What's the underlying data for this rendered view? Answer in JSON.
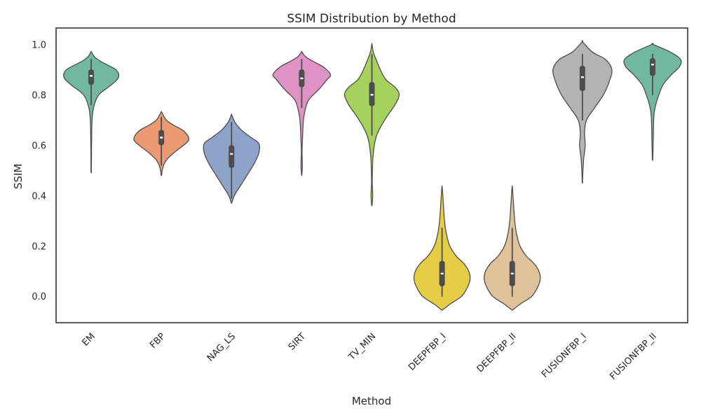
{
  "chart_data": {
    "type": "violin",
    "title": "SSIM Distribution by Method",
    "xlabel": "Method",
    "ylabel": "SSIM",
    "ylim": [
      -0.105,
      1.065
    ],
    "yticks": [
      "0.0",
      "0.2",
      "0.4",
      "0.6",
      "0.8",
      "1.0"
    ],
    "grid": false,
    "categories": [
      "EM",
      "FBP",
      "NAG_LS",
      "SIRT",
      "TV_MIN",
      "DEEPFBP_I",
      "DEEPFBP_II",
      "FUSIONFBP_I",
      "FUSIONFBP_II"
    ],
    "series": [
      {
        "category": "EM",
        "color": "#72b8a1",
        "min": 0.49,
        "max": 0.97,
        "q1": 0.84,
        "median": 0.875,
        "q3": 0.9,
        "whisker_low": 0.76,
        "whisker_high": 0.94,
        "profile": [
          [
            0.49,
            0.2
          ],
          [
            0.55,
            0.4
          ],
          [
            0.62,
            0.6
          ],
          [
            0.7,
            1.3
          ],
          [
            0.75,
            3.5
          ],
          [
            0.8,
            11
          ],
          [
            0.84,
            29
          ],
          [
            0.87,
            39
          ],
          [
            0.9,
            35
          ],
          [
            0.93,
            15
          ],
          [
            0.95,
            5
          ],
          [
            0.97,
            0.3
          ]
        ]
      },
      {
        "category": "FBP",
        "color": "#ec9a74",
        "min": 0.48,
        "max": 0.73,
        "q1": 0.6,
        "median": 0.63,
        "q3": 0.66,
        "whisker_low": 0.52,
        "whisker_high": 0.71,
        "profile": [
          [
            0.48,
            0.3
          ],
          [
            0.51,
            2
          ],
          [
            0.54,
            7
          ],
          [
            0.57,
            18
          ],
          [
            0.6,
            32
          ],
          [
            0.62,
            39
          ],
          [
            0.64,
            37
          ],
          [
            0.66,
            30
          ],
          [
            0.68,
            17
          ],
          [
            0.7,
            7
          ],
          [
            0.73,
            0.5
          ]
        ]
      },
      {
        "category": "NAG_LS",
        "color": "#8fa2c8",
        "min": 0.37,
        "max": 0.72,
        "q1": 0.51,
        "median": 0.565,
        "q3": 0.6,
        "whisker_low": 0.39,
        "whisker_high": 0.69,
        "profile": [
          [
            0.37,
            0.3
          ],
          [
            0.4,
            4
          ],
          [
            0.44,
            13
          ],
          [
            0.48,
            22
          ],
          [
            0.52,
            31
          ],
          [
            0.56,
            38
          ],
          [
            0.59,
            40
          ],
          [
            0.61,
            38
          ],
          [
            0.63,
            28
          ],
          [
            0.66,
            14
          ],
          [
            0.69,
            5
          ],
          [
            0.72,
            0.3
          ]
        ]
      },
      {
        "category": "SIRT",
        "color": "#df92c4",
        "min": 0.48,
        "max": 0.97,
        "q1": 0.83,
        "median": 0.865,
        "q3": 0.9,
        "whisker_low": 0.75,
        "whisker_high": 0.94,
        "profile": [
          [
            0.48,
            0.2
          ],
          [
            0.52,
            1
          ],
          [
            0.57,
            0.5
          ],
          [
            0.63,
            1.2
          ],
          [
            0.7,
            2.5
          ],
          [
            0.74,
            5
          ],
          [
            0.78,
            10
          ],
          [
            0.82,
            24
          ],
          [
            0.86,
            36
          ],
          [
            0.88,
            41
          ],
          [
            0.91,
            31
          ],
          [
            0.93,
            18
          ],
          [
            0.95,
            6
          ],
          [
            0.97,
            0.3
          ]
        ]
      },
      {
        "category": "TV_MIN",
        "color": "#a6d15c",
        "min": 0.36,
        "max": 1.0,
        "q1": 0.755,
        "median": 0.8,
        "q3": 0.85,
        "whisker_low": 0.64,
        "whisker_high": 0.96,
        "profile": [
          [
            0.36,
            0.3
          ],
          [
            0.4,
            1.2
          ],
          [
            0.45,
            0.5
          ],
          [
            0.5,
            0.8
          ],
          [
            0.55,
            1.5
          ],
          [
            0.6,
            3.5
          ],
          [
            0.64,
            7
          ],
          [
            0.68,
            14
          ],
          [
            0.72,
            23
          ],
          [
            0.76,
            33
          ],
          [
            0.8,
            39
          ],
          [
            0.83,
            33
          ],
          [
            0.86,
            20
          ],
          [
            0.9,
            12
          ],
          [
            0.94,
            6
          ],
          [
            0.97,
            2
          ],
          [
            1.0,
            0.2
          ]
        ]
      },
      {
        "category": "DEEPFBP_I",
        "color": "#e6cd46",
        "min": -0.055,
        "max": 0.43,
        "q1": 0.04,
        "median": 0.09,
        "q3": 0.14,
        "whisker_low": 0.0,
        "whisker_high": 0.27,
        "profile": [
          [
            -0.055,
            0.3
          ],
          [
            -0.03,
            12
          ],
          [
            0.0,
            28
          ],
          [
            0.04,
            37
          ],
          [
            0.07,
            40
          ],
          [
            0.1,
            38
          ],
          [
            0.13,
            31
          ],
          [
            0.16,
            20
          ],
          [
            0.2,
            11
          ],
          [
            0.25,
            6
          ],
          [
            0.3,
            3.5
          ],
          [
            0.36,
            2
          ],
          [
            0.43,
            0.3
          ]
        ]
      },
      {
        "category": "DEEPFBP_II",
        "color": "#dfc29a",
        "min": -0.055,
        "max": 0.43,
        "q1": 0.04,
        "median": 0.09,
        "q3": 0.14,
        "whisker_low": 0.0,
        "whisker_high": 0.27,
        "profile": [
          [
            -0.055,
            0.3
          ],
          [
            -0.03,
            12
          ],
          [
            0.0,
            28
          ],
          [
            0.04,
            37
          ],
          [
            0.07,
            40
          ],
          [
            0.1,
            38
          ],
          [
            0.13,
            31
          ],
          [
            0.16,
            20
          ],
          [
            0.2,
            11
          ],
          [
            0.25,
            6
          ],
          [
            0.3,
            3.5
          ],
          [
            0.36,
            2
          ],
          [
            0.43,
            0.3
          ]
        ]
      },
      {
        "category": "FUSIONFBP_I",
        "color": "#b3b3b3",
        "min": 0.45,
        "max": 1.01,
        "q1": 0.815,
        "median": 0.87,
        "q3": 0.915,
        "whisker_low": 0.7,
        "whisker_high": 0.96,
        "profile": [
          [
            0.45,
            0.2
          ],
          [
            0.5,
            0.8
          ],
          [
            0.55,
            2
          ],
          [
            0.6,
            4
          ],
          [
            0.65,
            3
          ],
          [
            0.7,
            6
          ],
          [
            0.75,
            18
          ],
          [
            0.8,
            30
          ],
          [
            0.85,
            38
          ],
          [
            0.9,
            42
          ],
          [
            0.94,
            33
          ],
          [
            0.97,
            14
          ],
          [
            1.01,
            0.3
          ]
        ]
      },
      {
        "category": "FUSIONFBP_II",
        "color": "#72b8a1",
        "min": 0.54,
        "max": 1.0,
        "q1": 0.875,
        "median": 0.92,
        "q3": 0.945,
        "whisker_low": 0.8,
        "whisker_high": 0.96,
        "profile": [
          [
            0.54,
            0.3
          ],
          [
            0.6,
            0.8
          ],
          [
            0.66,
            1.2
          ],
          [
            0.72,
            2
          ],
          [
            0.76,
            4.5
          ],
          [
            0.8,
            9
          ],
          [
            0.84,
            15
          ],
          [
            0.88,
            27
          ],
          [
            0.91,
            38
          ],
          [
            0.94,
            40
          ],
          [
            0.97,
            25
          ],
          [
            1.0,
            0.3
          ]
        ]
      }
    ]
  }
}
